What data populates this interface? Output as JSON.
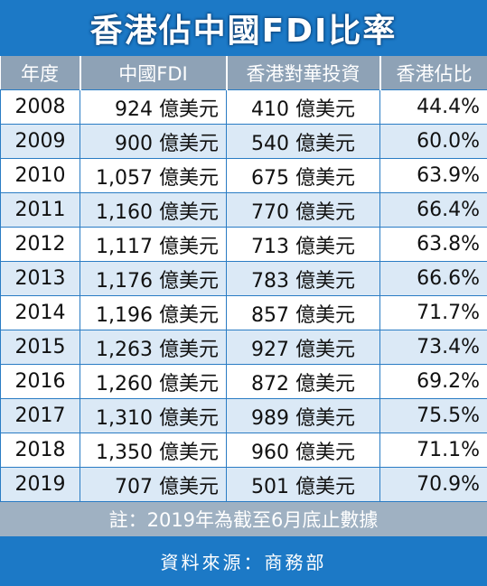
{
  "title": "香港佔中國FDI比率",
  "table": {
    "header": [
      "年度",
      "中國FDI",
      "香港對華投資",
      "香港佔比"
    ],
    "rows": [
      [
        "2008",
        "924 億美元",
        "410 億美元",
        "44.4%"
      ],
      [
        "2009",
        "900 億美元",
        "540 億美元",
        "60.0%"
      ],
      [
        "2010",
        "1,057 億美元",
        "675 億美元",
        "63.9%"
      ],
      [
        "2011",
        "1,160 億美元",
        "770 億美元",
        "66.4%"
      ],
      [
        "2012",
        "1,117 億美元",
        "713 億美元",
        "63.8%"
      ],
      [
        "2013",
        "1,176 億美元",
        "783 億美元",
        "66.6%"
      ],
      [
        "2014",
        "1,196 億美元",
        "857 億美元",
        "71.7%"
      ],
      [
        "2015",
        "1,263 億美元",
        "927 億美元",
        "73.4%"
      ],
      [
        "2016",
        "1,260 億美元",
        "872 億美元",
        "69.2%"
      ],
      [
        "2017",
        "1,310 億美元",
        "989 億美元",
        "75.5%"
      ],
      [
        "2018",
        "1,350 億美元",
        "960 億美元",
        "71.1%"
      ],
      [
        "2019",
        "707 億美元",
        "501 億美元",
        "70.9%"
      ]
    ]
  },
  "note": "註：2019年為截至6月底止數據",
  "source": "資料來源：商務部"
}
